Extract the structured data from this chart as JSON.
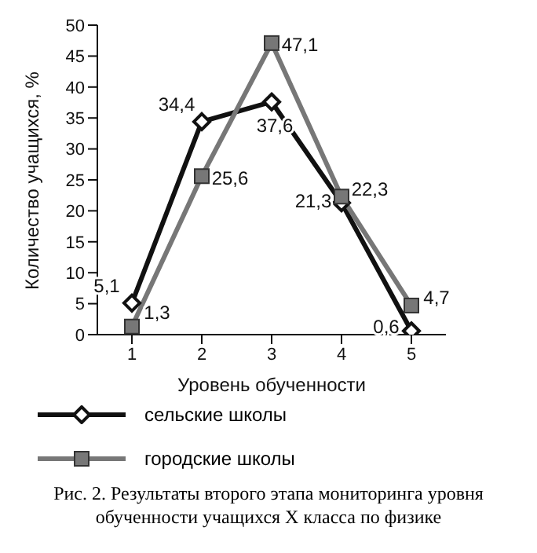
{
  "chart_data": {
    "type": "line",
    "categories": [
      "1",
      "2",
      "3",
      "4",
      "5"
    ],
    "xlabel": "Уровень обученности",
    "ylabel": "Количество учащихся, %",
    "ylim": [
      0,
      50
    ],
    "yticks": [
      0,
      5,
      10,
      15,
      20,
      25,
      30,
      35,
      40,
      45,
      50
    ],
    "grid": false,
    "legend": "bottom",
    "line_style": "solid",
    "series": [
      {
        "name": "сельские школы",
        "color": "#111111",
        "marker": "diamond",
        "values": [
          5.1,
          34.4,
          37.6,
          21.3,
          0.6
        ],
        "value_labels": [
          "5,1",
          "34,4",
          "37,6",
          "21,3",
          "0,6"
        ]
      },
      {
        "name": "городские школы",
        "color": "#777777",
        "marker": "square",
        "values": [
          1.3,
          25.6,
          47.1,
          22.3,
          4.7
        ],
        "value_labels": [
          "1,3",
          "25,6",
          "47,1",
          "22,3",
          "4,7"
        ]
      }
    ],
    "annotations": [
      "Рис. 2. Результаты второго этапа мониторинга уровня обученности учащихся X класса по физике"
    ]
  }
}
